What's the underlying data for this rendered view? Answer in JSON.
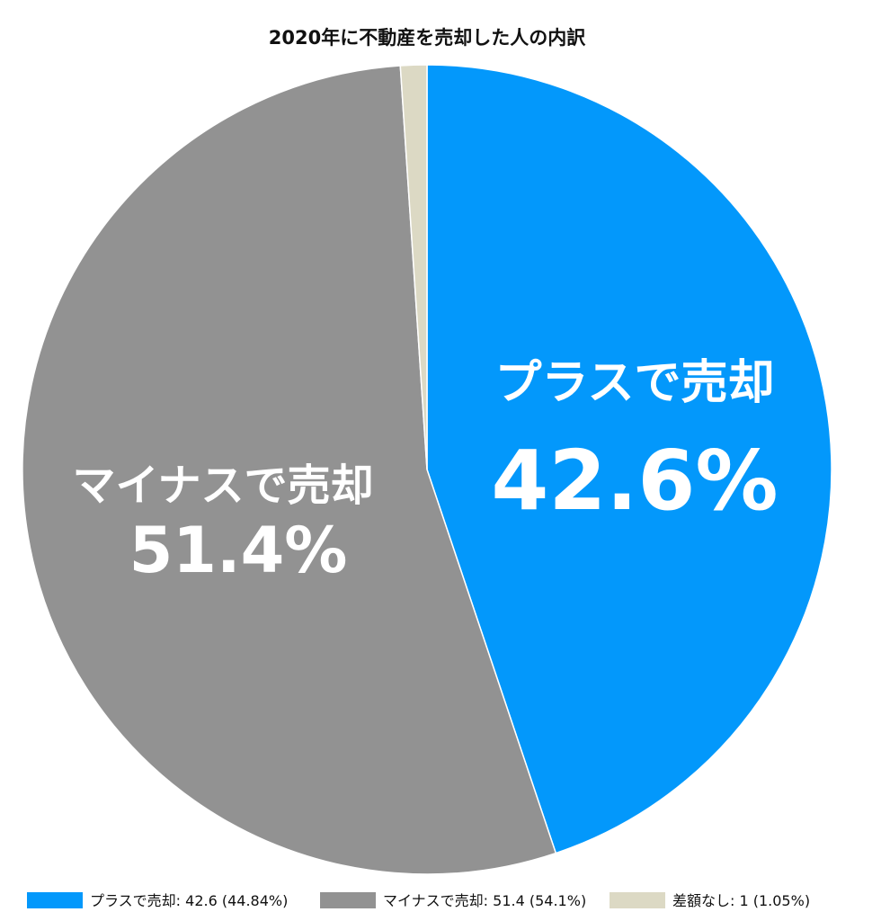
{
  "chart_data": {
    "type": "pie",
    "title": "2020年に不動産を売却した人の内訳",
    "slices": [
      {
        "name": "プラスで売却",
        "value": 42.6,
        "percent_label": "44.84%",
        "color": "#0398fb",
        "inner_label": "プラスで売却",
        "inner_value": "42.6%"
      },
      {
        "name": "マイナスで売却",
        "value": 51.4,
        "percent_label": "54.1%",
        "color": "#929292",
        "inner_label": "マイナスで売却",
        "inner_value": "51.4%"
      },
      {
        "name": "差額なし",
        "value": 1,
        "percent_label": "1.05%",
        "color": "#dcd9c4",
        "inner_label": "",
        "inner_value": ""
      }
    ],
    "legend": [
      "プラスで売却: 42.6 (44.84%)",
      "マイナスで売却: 51.4 (54.1%)",
      "差額なし: 1 (1.05%)"
    ],
    "legend_position": "bottom"
  }
}
